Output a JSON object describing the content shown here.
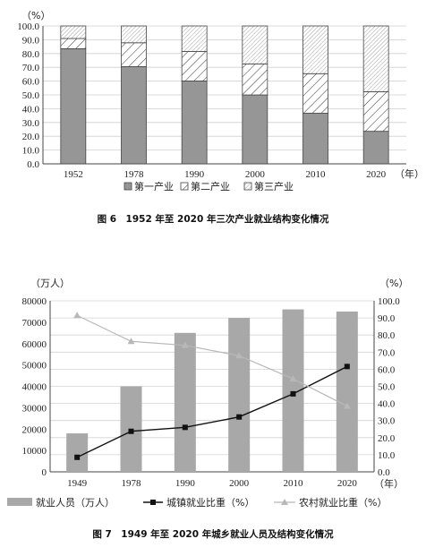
{
  "chart_data": [
    {
      "type": "bar",
      "stacked": true,
      "y_unit": "（%）",
      "x_unit": "（年）",
      "categories": [
        "1952",
        "1978",
        "1990",
        "2000",
        "2010",
        "2020"
      ],
      "ylim": [
        0,
        100
      ],
      "yticks": [
        "0.0",
        "10.0",
        "20.0",
        "30.0",
        "40.0",
        "50.0",
        "60.0",
        "70.0",
        "80.0",
        "90.0",
        "100.0"
      ],
      "series": [
        {
          "name": "第一产业",
          "values": [
            83.5,
            70.5,
            60.1,
            50.0,
            36.7,
            23.6
          ],
          "fill": "#969696"
        },
        {
          "name": "第二产业",
          "values": [
            7.4,
            17.3,
            21.4,
            22.5,
            28.7,
            28.7
          ],
          "fill": "hatch-diag"
        },
        {
          "name": "第三产业",
          "values": [
            9.1,
            12.2,
            18.5,
            27.5,
            34.6,
            47.7
          ],
          "fill": "hatch-dense"
        }
      ],
      "legend_position": "bottom",
      "caption": "图 6　1952 年至 2020 年三次产业就业结构变化情况"
    },
    {
      "type": "bar+line",
      "y_unit_left": "（万人）",
      "y_unit_right": "（%）",
      "x_unit": "（年）",
      "categories": [
        "1949",
        "1978",
        "1990",
        "2000",
        "2010",
        "2020"
      ],
      "ylim_left": [
        0,
        80000
      ],
      "yticks_left": [
        "0",
        "10000",
        "20000",
        "30000",
        "40000",
        "50000",
        "60000",
        "70000",
        "80000"
      ],
      "ylim_right": [
        0,
        100
      ],
      "yticks_right": [
        "0.0",
        "10.0",
        "20.0",
        "30.0",
        "40.0",
        "50.0",
        "60.0",
        "70.0",
        "80.0",
        "90.0",
        "100.0"
      ],
      "bar_series": {
        "name": "就业人员（万人）",
        "values": [
          18000,
          40000,
          65000,
          72000,
          76000,
          75000
        ],
        "color": "#a8a8a8"
      },
      "line_series": [
        {
          "name": "城镇就业比重（%）",
          "values": [
            8.5,
            23.7,
            26.0,
            32.1,
            45.6,
            61.6
          ],
          "color": "#111111",
          "marker": "square"
        },
        {
          "name": "农村就业比重（%）",
          "values": [
            91.5,
            76.3,
            74.0,
            67.9,
            54.4,
            38.4
          ],
          "color": "#b8b8b8",
          "marker": "triangle"
        }
      ],
      "legend_position": "bottom",
      "caption": "图 7　1949 年至 2020 年城乡就业人员及结构变化情况"
    }
  ]
}
